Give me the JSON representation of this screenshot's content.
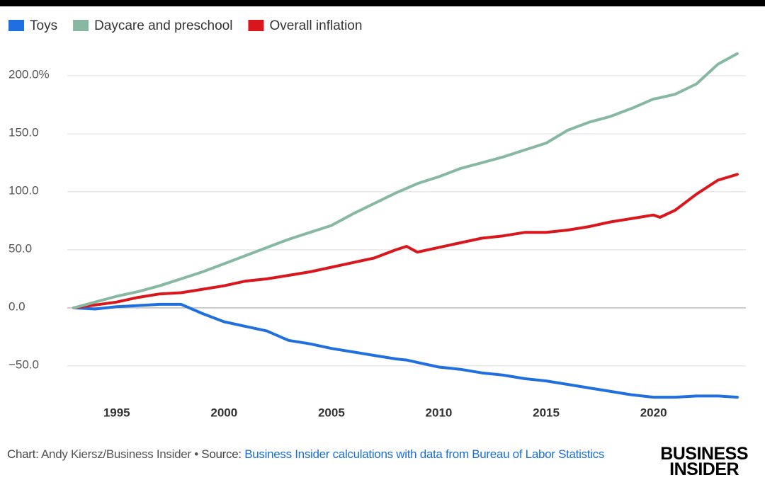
{
  "chart_data": {
    "type": "line",
    "x": [
      1993,
      1994,
      1995,
      1996,
      1997,
      1998,
      1999,
      2000,
      2001,
      2002,
      2003,
      2004,
      2005,
      2006,
      2007,
      2008,
      2008.5,
      2009,
      2010,
      2011,
      2012,
      2013,
      2014,
      2015,
      2016,
      2017,
      2018,
      2019,
      2020,
      2020.3,
      2021,
      2022,
      2023,
      2023.9
    ],
    "series": [
      {
        "name": "Toys",
        "color": "#1f6fe0",
        "values": [
          0,
          -1,
          1,
          2,
          3,
          3,
          -5,
          -12,
          -16,
          -20,
          -28,
          -31,
          -35,
          -38,
          -41,
          -44,
          -45,
          -47,
          -51,
          -53,
          -56,
          -58,
          -61,
          -63,
          -66,
          -69,
          -72,
          -75,
          -77,
          -77,
          -77,
          -76,
          -76,
          -77
        ]
      },
      {
        "name": "Daycare and preschool",
        "color": "#86b8a2",
        "values": [
          0,
          5,
          10,
          14,
          19,
          25,
          31,
          38,
          45,
          52,
          59,
          65,
          71,
          81,
          90,
          99,
          103,
          107,
          113,
          120,
          125,
          130,
          136,
          142,
          153,
          160,
          165,
          172,
          180,
          181,
          184,
          193,
          210,
          219
        ]
      },
      {
        "name": "Overall inflation",
        "color": "#d9161c",
        "values": [
          0,
          2.5,
          5,
          9,
          12,
          13,
          16,
          19,
          23,
          25,
          28,
          31,
          35,
          39,
          43,
          50,
          53,
          48,
          52,
          56,
          60,
          62,
          65,
          65,
          67,
          70,
          74,
          77,
          80,
          78,
          84,
          98,
          110,
          115
        ]
      }
    ],
    "xlim": [
      1992.7,
      2024.3
    ],
    "xticks": [
      1995,
      2000,
      2005,
      2010,
      2015,
      2020
    ],
    "ylim": [
      -80,
      225
    ],
    "yticks": [
      {
        "value": -50,
        "label": "−50.0"
      },
      {
        "value": 0,
        "label": "0.0"
      },
      {
        "value": 50,
        "label": "50.0"
      },
      {
        "value": 100,
        "label": "100.0"
      },
      {
        "value": 150,
        "label": "150.0"
      },
      {
        "value": 200,
        "label": "200.0%"
      }
    ],
    "grid": true,
    "legend": "top"
  },
  "footer": {
    "credit_label": "Chart:",
    "credit": "Andy Kiersz/Business Insider",
    "separator": "•",
    "source_label": "Source:",
    "source": "Business Insider calculations with data from Bureau of Labor Statistics"
  },
  "logo": {
    "line1": "BUSINESS",
    "line2": "INSIDER"
  }
}
